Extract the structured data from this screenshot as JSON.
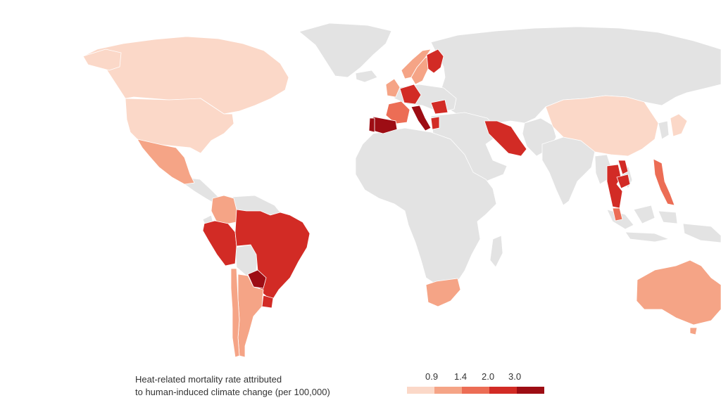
{
  "legend": {
    "title_line1": "Heat-related mortality rate attributed",
    "title_line2": "to human-induced climate change (per 100,000)",
    "ticks": [
      "0.9",
      "1.4",
      "2.0",
      "3.0"
    ],
    "colors": [
      "#fbd8c8",
      "#f5a486",
      "#ec6d55",
      "#d22b25",
      "#9d0d14"
    ]
  },
  "colors": {
    "no_data": "#e3e3e3",
    "border": "#ffffff",
    "background": "#ffffff"
  },
  "regions": [
    {
      "name": "Canada",
      "level": 1
    },
    {
      "name": "United States",
      "level": 1
    },
    {
      "name": "Mexico",
      "level": 2
    },
    {
      "name": "Colombia",
      "level": 2
    },
    {
      "name": "Peru",
      "level": 4
    },
    {
      "name": "Brazil",
      "level": 4
    },
    {
      "name": "Paraguay",
      "level": 5
    },
    {
      "name": "Argentina",
      "level": 2
    },
    {
      "name": "Chile",
      "level": 2
    },
    {
      "name": "Uruguay",
      "level": 4
    },
    {
      "name": "Norway",
      "level": 2
    },
    {
      "name": "Sweden",
      "level": 2
    },
    {
      "name": "Finland",
      "level": 4
    },
    {
      "name": "United Kingdom",
      "level": 2
    },
    {
      "name": "France",
      "level": 3
    },
    {
      "name": "Spain",
      "level": 5
    },
    {
      "name": "Portugal",
      "level": 5
    },
    {
      "name": "Germany",
      "level": 4
    },
    {
      "name": "Italy",
      "level": 5
    },
    {
      "name": "Romania",
      "level": 4
    },
    {
      "name": "Greece",
      "level": 4
    },
    {
      "name": "Iran",
      "level": 4
    },
    {
      "name": "China",
      "level": 1
    },
    {
      "name": "Japan",
      "level": 1
    },
    {
      "name": "Thailand",
      "level": 4
    },
    {
      "name": "Cambodia",
      "level": 4
    },
    {
      "name": "Philippines",
      "level": 3
    },
    {
      "name": "Malaysia",
      "level": 3
    },
    {
      "name": "South Africa",
      "level": 2
    },
    {
      "name": "Australia",
      "level": 2
    }
  ]
}
